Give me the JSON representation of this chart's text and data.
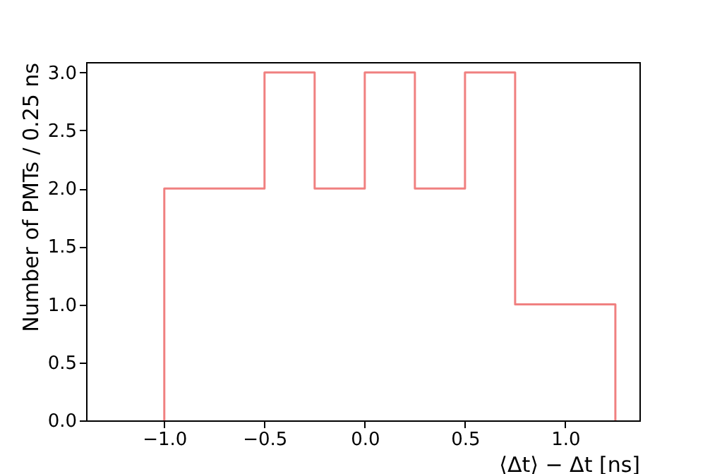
{
  "chart_data": {
    "type": "histogram",
    "xlabel": "⟨Δt⟩ − Δt [ns]",
    "ylabel": "Number of PMTs / 0.25 ns",
    "bins": [
      -1.0,
      -0.5,
      -0.25,
      0.0,
      0.25,
      0.5,
      0.75,
      1.25
    ],
    "values": [
      2,
      3,
      2,
      3,
      2,
      3,
      1
    ],
    "color": "#f08080",
    "xlim": [
      -1.39,
      1.37
    ],
    "xticks": [
      {
        "value": -1,
        "label": "−1.0"
      },
      {
        "value": -0.5,
        "label": "−0.5"
      },
      {
        "value": 0,
        "label": "0.0"
      },
      {
        "value": 0.5,
        "label": "0.5"
      },
      {
        "value": 1,
        "label": "1.0"
      }
    ],
    "ylim": [
      0,
      3.09
    ],
    "yticks": [
      {
        "value": 0,
        "label": "0.0"
      },
      {
        "value": 0.5,
        "label": "0.5"
      },
      {
        "value": 1,
        "label": "1.0"
      },
      {
        "value": 1.5,
        "label": "1.5"
      },
      {
        "value": 2,
        "label": "2.0"
      },
      {
        "value": 2.5,
        "label": "2.5"
      },
      {
        "value": 3,
        "label": "3.0"
      }
    ],
    "grid": false
  }
}
